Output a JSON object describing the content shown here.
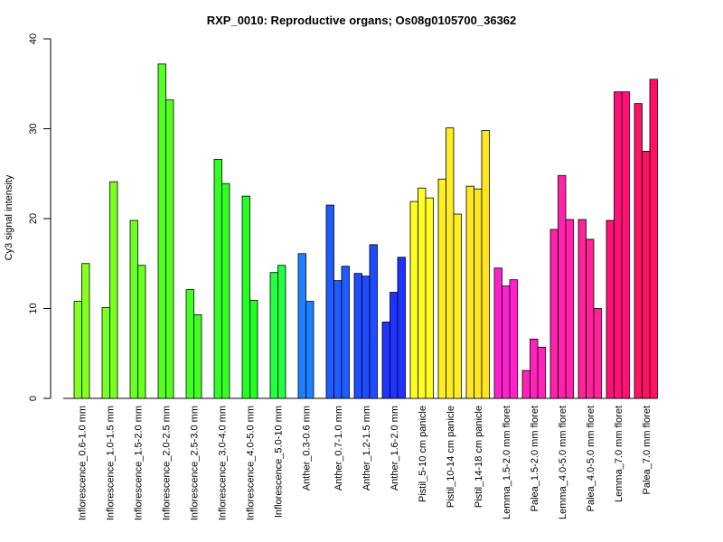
{
  "chart_data": {
    "type": "bar",
    "title": "RXP_0010: Reproductive organs; Os08g0105700_36362",
    "xlabel": "",
    "ylabel": "Cy3 signal intensity",
    "ylim": [
      0,
      40
    ],
    "yticks": [
      0,
      10,
      20,
      30,
      40
    ],
    "grid": false,
    "groups": [
      {
        "label": "Inflorescence_0.6-1.0 mm",
        "color": "#88ff22",
        "values": [
          10.8,
          15.0
        ]
      },
      {
        "label": "Inflorescence_1.0-1.5 mm",
        "color": "#7dff22",
        "values": [
          10.1,
          24.1
        ]
      },
      {
        "label": "Inflorescence_1.5-2.0 mm",
        "color": "#6bff22",
        "values": [
          19.8,
          14.8
        ]
      },
      {
        "label": "Inflorescence_2.0-2.5 mm",
        "color": "#55ff22",
        "values": [
          37.2,
          33.2
        ]
      },
      {
        "label": "Inflorescence_2.5-3.0 mm",
        "color": "#44ff22",
        "values": [
          12.1,
          9.3
        ]
      },
      {
        "label": "Inflorescence_3.0-4.0 mm",
        "color": "#33ff22",
        "values": [
          26.6,
          23.9
        ]
      },
      {
        "label": "Inflorescence_4.0-5.0 mm",
        "color": "#22ff22",
        "values": [
          22.5,
          10.9
        ]
      },
      {
        "label": "Inflorescence_5.0-10 mm",
        "color": "#22ff44",
        "values": [
          14.0,
          14.8
        ]
      },
      {
        "label": "Anther_0.3-0.6 mm",
        "color": "#1f80ff",
        "values": [
          16.1,
          10.8
        ]
      },
      {
        "label": "Anther_0.7-1.0 mm",
        "color": "#1f5cff",
        "values": [
          21.5,
          13.1,
          14.7
        ]
      },
      {
        "label": "Anther_1.2-1.5 mm",
        "color": "#1f4cff",
        "values": [
          13.9,
          13.6,
          17.1
        ]
      },
      {
        "label": "Anther_1.6-2.0 mm",
        "color": "#1f33ff",
        "values": [
          8.5,
          11.8,
          15.7
        ]
      },
      {
        "label": "Pistil_5-10 cm panicle",
        "color": "#ffff22",
        "values": [
          21.9,
          23.4,
          22.3
        ]
      },
      {
        "label": "Pistil_10-14 cm panicle",
        "color": "#ffee22",
        "values": [
          24.4,
          30.1,
          20.5
        ]
      },
      {
        "label": "Pistil_14-18 cm panicle",
        "color": "#ffe622",
        "values": [
          23.6,
          23.3,
          29.8
        ]
      },
      {
        "label": "Lemma_1.5-2.0 mm floret",
        "color": "#ff22cc",
        "values": [
          14.5,
          12.5,
          13.2
        ]
      },
      {
        "label": "Palea_1.5-2.0 mm floret",
        "color": "#ff22bb",
        "values": [
          3.1,
          6.6,
          5.7
        ]
      },
      {
        "label": "Lemma_4.0-5.0 mm floret",
        "color": "#ff22aa",
        "values": [
          18.8,
          24.8,
          19.9
        ]
      },
      {
        "label": "Palea_4.0-5.0 mm floret",
        "color": "#ff2299",
        "values": [
          19.9,
          17.7,
          10.0
        ]
      },
      {
        "label": "Lemma_7.0 mm floret",
        "color": "#ff1177",
        "values": [
          19.8,
          34.1,
          34.1
        ]
      },
      {
        "label": "Palea_7.0 mm floret",
        "color": "#ff1166",
        "values": [
          32.8,
          27.5,
          35.5
        ]
      }
    ]
  }
}
